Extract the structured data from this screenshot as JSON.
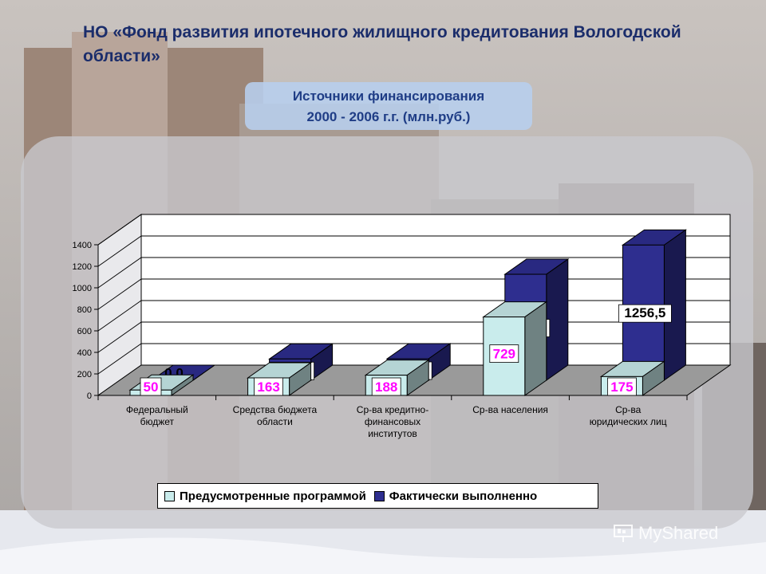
{
  "header": {
    "title": "НО «Фонд развития ипотечного жилищного кредитования Вологодской области»",
    "subtitle_line1": "Источники финансирования",
    "subtitle_line2": "2000 - 2006 г.г. (млн.руб.)"
  },
  "watermark": {
    "text": "MyShared"
  },
  "chart_data": {
    "type": "bar",
    "style": "3d-clustered",
    "title": "",
    "xlabel": "",
    "ylabel": "",
    "ylim": [
      0,
      1400
    ],
    "yticks": [
      0,
      200,
      400,
      600,
      800,
      1000,
      1200,
      1400
    ],
    "grid": true,
    "legend_position": "bottom",
    "categories": [
      [
        "Федеральный",
        "бюджет"
      ],
      [
        "Средства бюджета",
        "области"
      ],
      [
        "Ср-ва кредитно-",
        "финансовых",
        "институтов"
      ],
      [
        "Ср-ва населения"
      ],
      [
        "Ср-ва",
        "юридических лиц"
      ]
    ],
    "series": [
      {
        "name": "Предусмотренные программой",
        "color": "#c9ecec",
        "values": [
          50,
          163,
          188,
          729,
          175
        ],
        "labels": [
          "50",
          "163",
          "188",
          "729",
          "175"
        ],
        "label_color": "#ff00ff"
      },
      {
        "name": "Фактически выполненно",
        "color": "#2e2e8f",
        "values": [
          0.0,
          197.9,
          200.0,
          984.8,
          1256.5
        ],
        "labels": [
          "0,0",
          "197,9",
          "200,0",
          "984,8",
          "1256,5"
        ],
        "label_color": "#000000"
      }
    ]
  }
}
